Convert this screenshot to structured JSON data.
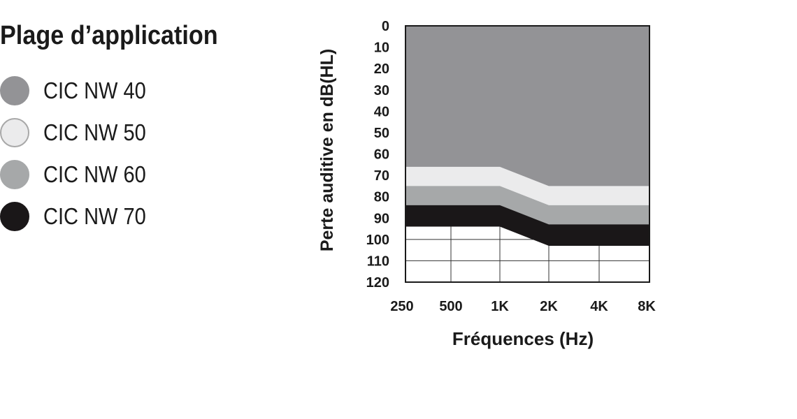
{
  "title": "Plage d’application",
  "legend": [
    {
      "label": "CIC NW 40",
      "color": "#939396",
      "border": "#939396"
    },
    {
      "label": "CIC NW 50",
      "color": "#ebebec",
      "border": "#a8a8a8"
    },
    {
      "label": "CIC NW 60",
      "color": "#a6a8a9",
      "border": "#a6a8a9"
    },
    {
      "label": "CIC NW 70",
      "color": "#1a1718",
      "border": "#1a1718"
    }
  ],
  "chart_data": {
    "type": "area",
    "xlabel": "Fréquences (Hz)",
    "ylabel": "Perte auditive en dB(HL)",
    "x": [
      "250",
      "500",
      "1K",
      "2K",
      "4K",
      "8K"
    ],
    "y_ticks": [
      "0",
      "10",
      "20",
      "30",
      "40",
      "50",
      "60",
      "70",
      "80",
      "90",
      "100",
      "110",
      "120"
    ],
    "ylim": [
      0,
      120
    ],
    "y_inverted": true,
    "grid": "bottom region only",
    "series": [
      {
        "name": "CIC NW 40",
        "color": "#939396",
        "values": [
          66,
          66,
          66,
          75,
          75,
          75
        ]
      },
      {
        "name": "CIC NW 50",
        "color": "#ebebec",
        "values": [
          75,
          75,
          75,
          84,
          84,
          84
        ]
      },
      {
        "name": "CIC NW 60",
        "color": "#a6a8a9",
        "values": [
          84,
          84,
          84,
          93,
          93,
          93
        ]
      },
      {
        "name": "CIC NW 70",
        "color": "#1a1718",
        "values": [
          94,
          94,
          94,
          103,
          103,
          103
        ]
      }
    ]
  }
}
